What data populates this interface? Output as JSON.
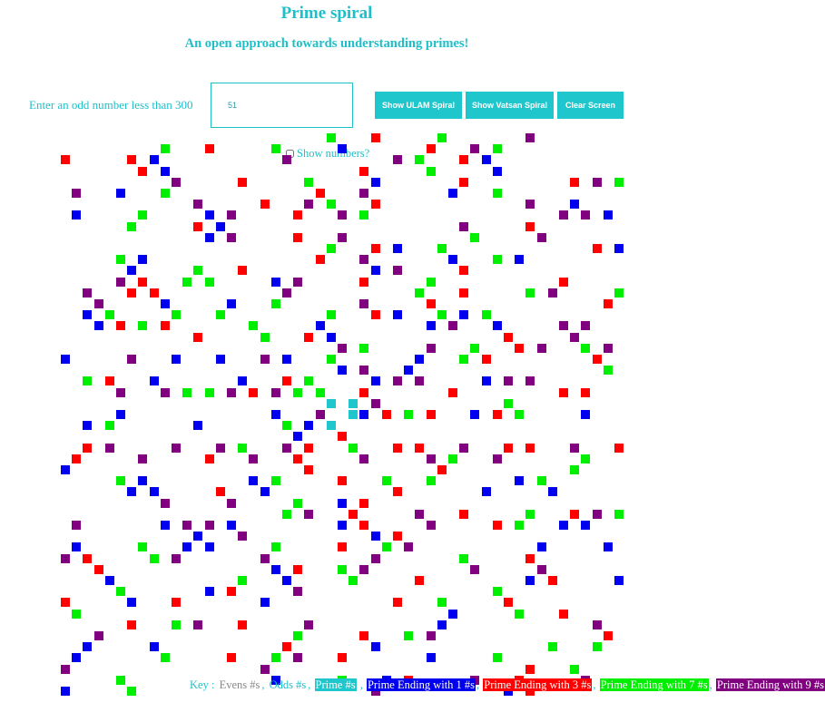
{
  "header": {
    "title": "Prime spiral",
    "subtitle": "An open approach towards understanding primes!"
  },
  "controls": {
    "prompt_label": "Enter an odd number less than 300",
    "input_value": "51",
    "ulam_button": "Show ULAM Spiral",
    "vatsan_button": "Show Vatsan Spiral",
    "clear_button": "Clear Screen",
    "show_numbers_label": "Show numbers?",
    "show_numbers_checked": false
  },
  "spiral": {
    "size": 51,
    "colors": {
      "prime": "#1fc6cc",
      "ending_1": "#0000ee",
      "ending_3": "#ff0000",
      "ending_7": "#00ee00",
      "ending_9": "#800080"
    }
  },
  "key": {
    "label": "Key : ",
    "evens": "Evens #s",
    "sep1": ", ",
    "odds": "Odds #s",
    "sep2": ", ",
    "prime": "Prime #s",
    "sep3": " , ",
    "ending_1": "Prime Ending with 1 #s",
    "sep4": ", ",
    "ending_3": "Prime Ending with 3 #s",
    "sep5": ", ",
    "ending_7": "Prime Ending with 7 #s",
    "sep6": ", ",
    "ending_9": "Prime Ending with 9 #s"
  }
}
